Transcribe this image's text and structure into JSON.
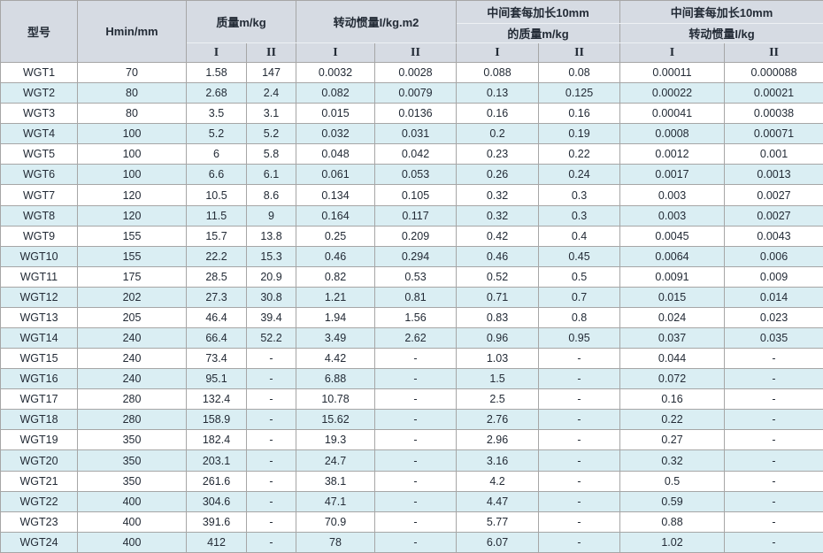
{
  "table": {
    "header": {
      "model": "型号",
      "hmin": "Hmin/mm",
      "mass_group": "质量m/kg",
      "inertia_group": "转动惯量I/kg.m2",
      "ext_mass_group_line1": "中间套每加长10mm",
      "ext_mass_group_line2": "的质量m/kg",
      "ext_inertia_group_line1": "中间套每加长10mm",
      "ext_inertia_group_line2": "转动惯量I/kg",
      "sub_i": "I",
      "sub_ii": "II"
    },
    "column_keys": [
      "model",
      "hmin",
      "mass_i",
      "mass_ii",
      "inertia_i",
      "inertia_ii",
      "ext_mass_i",
      "ext_mass_ii",
      "ext_inertia_i",
      "ext_inertia_ii"
    ],
    "rows": [
      [
        "WGT1",
        "70",
        "1.58",
        "147",
        "0.0032",
        "0.0028",
        "0.088",
        "0.08",
        "0.00011",
        "0.000088"
      ],
      [
        "WGT2",
        "80",
        "2.68",
        "2.4",
        "0.082",
        "0.0079",
        "0.13",
        "0.125",
        "0.00022",
        "0.00021"
      ],
      [
        "WGT3",
        "80",
        "3.5",
        "3.1",
        "0.015",
        "0.0136",
        "0.16",
        "0.16",
        "0.00041",
        "0.00038"
      ],
      [
        "WGT4",
        "100",
        "5.2",
        "5.2",
        "0.032",
        "0.031",
        "0.2",
        "0.19",
        "0.0008",
        "0.00071"
      ],
      [
        "WGT5",
        "100",
        "6",
        "5.8",
        "0.048",
        "0.042",
        "0.23",
        "0.22",
        "0.0012",
        "0.001"
      ],
      [
        "WGT6",
        "100",
        "6.6",
        "6.1",
        "0.061",
        "0.053",
        "0.26",
        "0.24",
        "0.0017",
        "0.0013"
      ],
      [
        "WGT7",
        "120",
        "10.5",
        "8.6",
        "0.134",
        "0.105",
        "0.32",
        "0.3",
        "0.003",
        "0.0027"
      ],
      [
        "WGT8",
        "120",
        "11.5",
        "9",
        "0.164",
        "0.117",
        "0.32",
        "0.3",
        "0.003",
        "0.0027"
      ],
      [
        "WGT9",
        "155",
        "15.7",
        "13.8",
        "0.25",
        "0.209",
        "0.42",
        "0.4",
        "0.0045",
        "0.0043"
      ],
      [
        "WGT10",
        "155",
        "22.2",
        "15.3",
        "0.46",
        "0.294",
        "0.46",
        "0.45",
        "0.0064",
        "0.006"
      ],
      [
        "WGT11",
        "175",
        "28.5",
        "20.9",
        "0.82",
        "0.53",
        "0.52",
        "0.5",
        "0.0091",
        "0.009"
      ],
      [
        "WGT12",
        "202",
        "27.3",
        "30.8",
        "1.21",
        "0.81",
        "0.71",
        "0.7",
        "0.015",
        "0.014"
      ],
      [
        "WGT13",
        "205",
        "46.4",
        "39.4",
        "1.94",
        "1.56",
        "0.83",
        "0.8",
        "0.024",
        "0.023"
      ],
      [
        "WGT14",
        "240",
        "66.4",
        "52.2",
        "3.49",
        "2.62",
        "0.96",
        "0.95",
        "0.037",
        "0.035"
      ],
      [
        "WGT15",
        "240",
        "73.4",
        "-",
        "4.42",
        "-",
        "1.03",
        "-",
        "0.044",
        "-"
      ],
      [
        "WGT16",
        "240",
        "95.1",
        "-",
        "6.88",
        "-",
        "1.5",
        "-",
        "0.072",
        "-"
      ],
      [
        "WGT17",
        "280",
        "132.4",
        "-",
        "10.78",
        "-",
        "2.5",
        "-",
        "0.16",
        "-"
      ],
      [
        "WGT18",
        "280",
        "158.9",
        "-",
        "15.62",
        "-",
        "2.76",
        "-",
        "0.22",
        "-"
      ],
      [
        "WGT19",
        "350",
        "182.4",
        "-",
        "19.3",
        "-",
        "2.96",
        "-",
        "0.27",
        "-"
      ],
      [
        "WGT20",
        "350",
        "203.1",
        "-",
        "24.7",
        "-",
        "3.16",
        "-",
        "0.32",
        "-"
      ],
      [
        "WGT21",
        "350",
        "261.6",
        "-",
        "38.1",
        "-",
        "4.2",
        "-",
        "0.5",
        "-"
      ],
      [
        "WGT22",
        "400",
        "304.6",
        "-",
        "47.1",
        "-",
        "4.47",
        "-",
        "0.59",
        "-"
      ],
      [
        "WGT23",
        "400",
        "391.6",
        "-",
        "70.9",
        "-",
        "5.77",
        "-",
        "0.88",
        "-"
      ],
      [
        "WGT24",
        "400",
        "412",
        "-",
        "78",
        "-",
        "6.07",
        "-",
        "1.02",
        "-"
      ]
    ]
  },
  "colors": {
    "header_bg": "#d6dbe3",
    "alt_row_bg": "#daeef3",
    "row_bg": "#ffffff",
    "border": "#a6a6a6",
    "header_split_line": "#eef1f4",
    "text": "#232b36"
  }
}
